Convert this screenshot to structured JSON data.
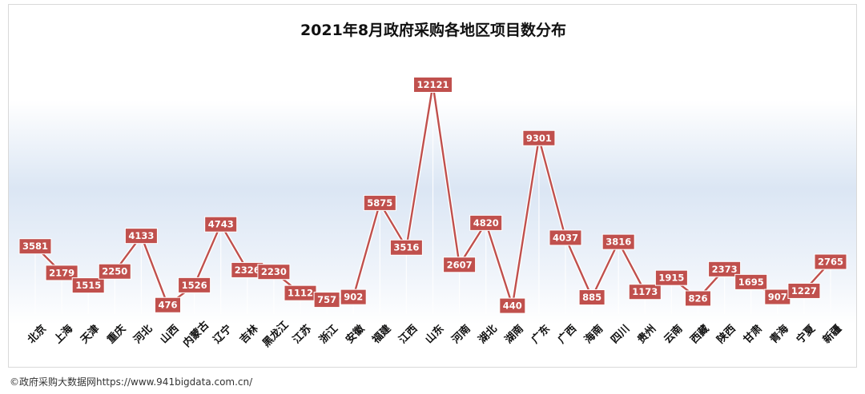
{
  "chart_data": {
    "type": "line",
    "title": "2021年8月政府采购各地区项目数分布",
    "categories": [
      "北京",
      "上海",
      "天津",
      "重庆",
      "河北",
      "山西",
      "内蒙古",
      "辽宁",
      "吉林",
      "黑龙江",
      "江苏",
      "浙江",
      "安徽",
      "福建",
      "江西",
      "山东",
      "河南",
      "湖北",
      "湖南",
      "广东",
      "广西",
      "海南",
      "四川",
      "贵州",
      "云南",
      "西藏",
      "陕西",
      "甘肃",
      "青海",
      "宁夏",
      "新疆"
    ],
    "series": [
      {
        "values": [
          3581,
          2179,
          1515,
          2250,
          4133,
          476,
          1526,
          4743,
          2326,
          2230,
          1112,
          757,
          902,
          5875,
          3516,
          12121,
          2607,
          4820,
          440,
          9301,
          4037,
          885,
          3816,
          1173,
          1915,
          826,
          2373,
          1695,
          907,
          1227,
          2765
        ]
      }
    ],
    "ylim": [
      0,
      12121
    ],
    "grid": false,
    "legend": "none",
    "line_color": "#c0504d",
    "label_bg": "#c0504d",
    "label_text_color": "#ffffff"
  },
  "footer": {
    "text": "©政府采购大数据网https://www.941bigdata.com.cn/"
  }
}
